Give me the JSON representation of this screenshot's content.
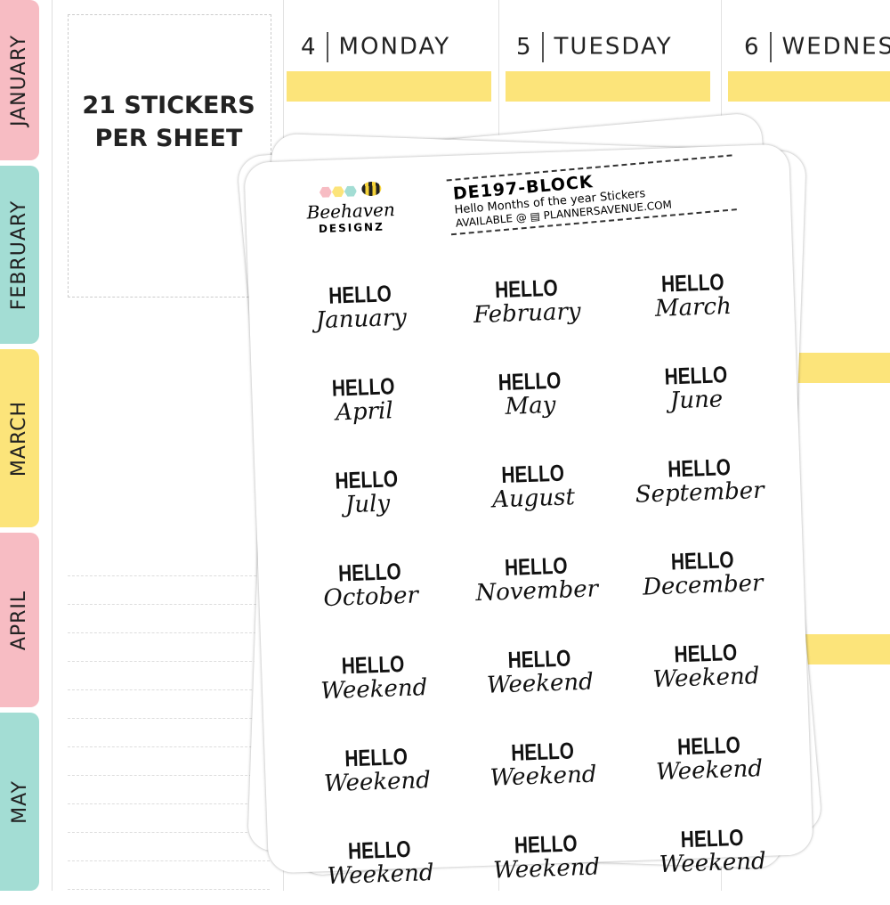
{
  "planner": {
    "tabs": [
      {
        "label": "JANUARY",
        "color": "#f7bcc3"
      },
      {
        "label": "FEBRUARY",
        "color": "#a3ddd4"
      },
      {
        "label": "MARCH",
        "color": "#fce47a"
      },
      {
        "label": "APRIL",
        "color": "#f7bcc3"
      },
      {
        "label": "MAY",
        "color": "#a3ddd4"
      }
    ],
    "days": [
      {
        "num": "4",
        "name": "MONDAY"
      },
      {
        "num": "5",
        "name": "TUESDAY"
      },
      {
        "num": "6",
        "name": "WEDNES"
      }
    ],
    "accent": "#fce47a"
  },
  "promo": {
    "count_line1": "21 STICKERS",
    "count_line2": "PER SHEET"
  },
  "sheet": {
    "code": "DE197-BLOCK",
    "description": "Hello Months of the year Stickers",
    "available": "AVAILABLE @",
    "site": "PLANNERSAVENUE.COM",
    "logo_script": "Beehaven",
    "logo_caps": "DESIGNZ",
    "stickers": [
      {
        "hello": "HELLO",
        "month": "January"
      },
      {
        "hello": "HELLO",
        "month": "February"
      },
      {
        "hello": "HELLO",
        "month": "March"
      },
      {
        "hello": "HELLO",
        "month": "April"
      },
      {
        "hello": "HELLO",
        "month": "May"
      },
      {
        "hello": "HELLO",
        "month": "June"
      },
      {
        "hello": "HELLO",
        "month": "July"
      },
      {
        "hello": "HELLO",
        "month": "August"
      },
      {
        "hello": "HELLO",
        "month": "September"
      },
      {
        "hello": "HELLO",
        "month": "October"
      },
      {
        "hello": "HELLO",
        "month": "November"
      },
      {
        "hello": "HELLO",
        "month": "December"
      },
      {
        "hello": "HELLO",
        "month": "Weekend"
      },
      {
        "hello": "HELLO",
        "month": "Weekend"
      },
      {
        "hello": "HELLO",
        "month": "Weekend"
      },
      {
        "hello": "HELLO",
        "month": "Weekend"
      },
      {
        "hello": "HELLO",
        "month": "Weekend"
      },
      {
        "hello": "HELLO",
        "month": "Weekend"
      },
      {
        "hello": "HELLO",
        "month": "Weekend"
      },
      {
        "hello": "HELLO",
        "month": "Weekend"
      },
      {
        "hello": "HELLO",
        "month": "Weekend"
      }
    ]
  }
}
